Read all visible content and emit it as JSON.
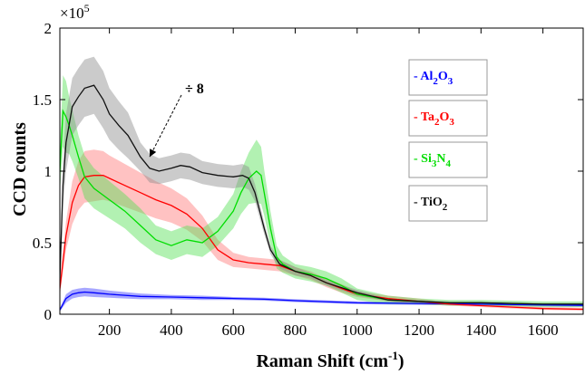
{
  "chart_data": {
    "type": "line",
    "xlabel": "Raman Shift (cm",
    "xlabel_sup": "-1",
    "xlabel_end": ")",
    "ylabel": "CCD counts",
    "exponent_label": "×10",
    "exponent_power": "5",
    "xlim": [
      40,
      1730
    ],
    "ylim": [
      0,
      2
    ],
    "xticks": [
      200,
      400,
      600,
      800,
      1000,
      1200,
      1400,
      1600
    ],
    "xtick_labels": [
      "200",
      "400",
      "600",
      "800",
      "1000",
      "1200",
      "1400",
      "1600"
    ],
    "yticks": [
      0,
      0.5,
      1,
      1.5,
      2
    ],
    "ytick_labels": [
      "0",
      "0.5",
      "1",
      "1.5",
      "2"
    ],
    "grid": false,
    "legend_placement": "right",
    "annotation": {
      "text": "÷ 8",
      "target_series": "TiO2",
      "target_x": 330,
      "target_y": 1.1
    },
    "series": [
      {
        "name": "Al2O3",
        "legend": {
          "dash": "-",
          "parts": [
            [
              "Al",
              ""
            ],
            [
              "2",
              "sub"
            ],
            [
              "O",
              ""
            ],
            [
              "3",
              "sub"
            ]
          ]
        },
        "color": "#0000ff",
        "band_color": "#3b3bff",
        "x": [
          40,
          60,
          80,
          100,
          120,
          150,
          200,
          300,
          400,
          500,
          600,
          700,
          800,
          1000,
          1200,
          1400,
          1600,
          1730
        ],
        "y": [
          0.03,
          0.11,
          0.14,
          0.15,
          0.155,
          0.15,
          0.14,
          0.125,
          0.12,
          0.115,
          0.11,
          0.105,
          0.095,
          0.08,
          0.075,
          0.07,
          0.065,
          0.062
        ],
        "band": [
          0.01,
          0.03,
          0.03,
          0.03,
          0.03,
          0.03,
          0.025,
          0.02,
          0.015,
          0.015,
          0.01,
          0.01,
          0.01,
          0.01,
          0.01,
          0.01,
          0.01,
          0.01
        ]
      },
      {
        "name": "Ta2O3",
        "legend": {
          "dash": "-",
          "parts": [
            [
              "Ta",
              ""
            ],
            [
              "2",
              "sub"
            ],
            [
              "O",
              ""
            ],
            [
              "3",
              "sub"
            ]
          ]
        },
        "color": "#ff0000",
        "band_color": "#ff7777",
        "x": [
          40,
          60,
          80,
          100,
          120,
          150,
          180,
          200,
          250,
          300,
          350,
          400,
          450,
          500,
          550,
          600,
          650,
          700,
          750,
          800,
          850,
          900,
          950,
          1000,
          1100,
          1200,
          1300,
          1400,
          1500,
          1600,
          1730
        ],
        "y": [
          0.18,
          0.55,
          0.78,
          0.9,
          0.96,
          0.97,
          0.97,
          0.95,
          0.9,
          0.85,
          0.8,
          0.76,
          0.7,
          0.6,
          0.45,
          0.38,
          0.36,
          0.35,
          0.34,
          0.3,
          0.27,
          0.22,
          0.18,
          0.14,
          0.11,
          0.09,
          0.07,
          0.06,
          0.05,
          0.04,
          0.035
        ],
        "band": [
          0.05,
          0.1,
          0.15,
          0.17,
          0.18,
          0.18,
          0.17,
          0.16,
          0.15,
          0.14,
          0.13,
          0.12,
          0.11,
          0.09,
          0.07,
          0.05,
          0.04,
          0.04,
          0.04,
          0.03,
          0.03,
          0.03,
          0.03,
          0.02,
          0.02,
          0.02,
          0.01,
          0.01,
          0.01,
          0.01,
          0.01
        ]
      },
      {
        "name": "Si3N4",
        "legend": {
          "dash": "-",
          "parts": [
            [
              "Si",
              ""
            ],
            [
              "3",
              "sub"
            ],
            [
              "N",
              ""
            ],
            [
              "4",
              "sub"
            ]
          ]
        },
        "color": "#00dd00",
        "band_color": "#55e055",
        "x": [
          40,
          50,
          60,
          70,
          80,
          100,
          120,
          150,
          200,
          250,
          300,
          350,
          400,
          450,
          500,
          550,
          600,
          625,
          650,
          675,
          690,
          700,
          720,
          740,
          760,
          800,
          850,
          900,
          950,
          1000,
          1100,
          1200,
          1300,
          1400,
          1500,
          1600,
          1730
        ],
        "y": [
          1.0,
          1.42,
          1.38,
          1.32,
          1.25,
          1.1,
          0.96,
          0.88,
          0.8,
          0.72,
          0.62,
          0.52,
          0.48,
          0.52,
          0.5,
          0.58,
          0.72,
          0.85,
          0.95,
          1.0,
          0.97,
          0.85,
          0.6,
          0.4,
          0.35,
          0.3,
          0.28,
          0.25,
          0.2,
          0.14,
          0.1,
          0.09,
          0.08,
          0.08,
          0.075,
          0.07,
          0.07
        ],
        "band": [
          0.15,
          0.25,
          0.25,
          0.2,
          0.18,
          0.15,
          0.15,
          0.14,
          0.13,
          0.12,
          0.12,
          0.1,
          0.1,
          0.1,
          0.1,
          0.1,
          0.12,
          0.15,
          0.18,
          0.22,
          0.2,
          0.16,
          0.12,
          0.08,
          0.06,
          0.05,
          0.05,
          0.05,
          0.05,
          0.04,
          0.03,
          0.02,
          0.02,
          0.02,
          0.02,
          0.02,
          0.02
        ]
      },
      {
        "name": "TiO2",
        "legend": {
          "dash": "-",
          "parts": [
            [
              "TiO",
              ""
            ],
            [
              "2",
              "sub"
            ]
          ]
        },
        "color": "#111111",
        "band_color": "#8c8c8c",
        "x": [
          40,
          50,
          60,
          80,
          100,
          120,
          150,
          180,
          200,
          230,
          260,
          300,
          330,
          360,
          400,
          430,
          460,
          500,
          550,
          600,
          630,
          650,
          670,
          700,
          720,
          750,
          800,
          850,
          900,
          1000,
          1100,
          1200,
          1300,
          1400,
          1500,
          1600,
          1730
        ],
        "y": [
          0.25,
          0.9,
          1.2,
          1.45,
          1.52,
          1.58,
          1.6,
          1.5,
          1.4,
          1.32,
          1.25,
          1.1,
          1.02,
          1.0,
          1.02,
          1.04,
          1.03,
          0.99,
          0.97,
          0.96,
          0.97,
          0.95,
          0.85,
          0.6,
          0.45,
          0.35,
          0.3,
          0.27,
          0.22,
          0.15,
          0.1,
          0.09,
          0.08,
          0.08,
          0.075,
          0.07,
          0.07
        ],
        "band": [
          0.05,
          0.15,
          0.2,
          0.2,
          0.2,
          0.2,
          0.2,
          0.2,
          0.18,
          0.17,
          0.16,
          0.1,
          0.1,
          0.09,
          0.09,
          0.09,
          0.09,
          0.08,
          0.08,
          0.08,
          0.08,
          0.08,
          0.06,
          0.04,
          0.03,
          0.03,
          0.03,
          0.02,
          0.02,
          0.02,
          0.01,
          0.01,
          0.01,
          0.01,
          0.01,
          0.01,
          0.01
        ]
      }
    ]
  }
}
